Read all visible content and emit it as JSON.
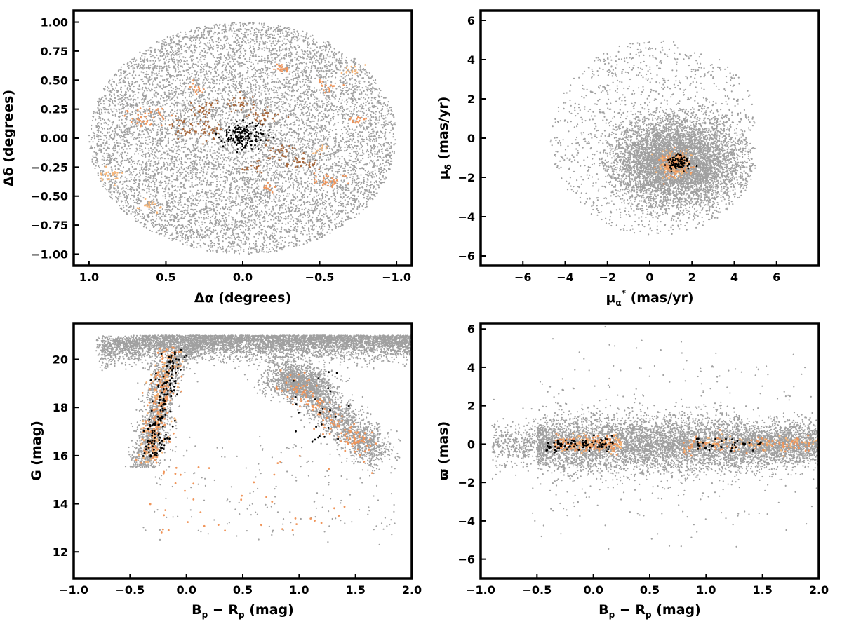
{
  "colors": {
    "field": "#a0a0a0",
    "members_light": "#f7b77a",
    "members_mid": "#f0955a",
    "members_dark": "#a8683c",
    "core": "#000000",
    "frame": "#000000"
  },
  "chart_data": [
    {
      "id": "sky",
      "type": "scatter",
      "xlabel": {
        "main": "Δα (degrees)"
      },
      "ylabel": {
        "main": "Δδ (degrees)"
      },
      "xlim": [
        1.1,
        -1.1
      ],
      "ylim": [
        -1.1,
        1.1
      ],
      "x_inverted": true,
      "xticks": [
        1.0,
        0.5,
        0.0,
        -0.5,
        -1.0
      ],
      "xtick_labels": [
        "1.0",
        "0.5",
        "0.0",
        "−0.5",
        "−1.0"
      ],
      "yticks": [
        1.0,
        0.75,
        0.5,
        0.25,
        0.0,
        -0.25,
        -0.5,
        -0.75,
        -1.0
      ],
      "ytick_labels": [
        "1.00",
        "0.75",
        "0.50",
        "0.25",
        "0.00",
        "−0.25",
        "−0.50",
        "−0.75",
        "−1.00"
      ],
      "series": [
        {
          "role": "field",
          "approx_count": 9000,
          "distribution": "uniform disc radius 1.0 deg centred at (0,0)"
        },
        {
          "role": "members",
          "clumps": [
            {
              "x": 0.62,
              "y": 0.18,
              "r": 0.06,
              "n": 40,
              "color": "members_mid"
            },
            {
              "x": 0.85,
              "y": -0.32,
              "r": 0.04,
              "n": 25,
              "color": "members_light"
            },
            {
              "x": 0.6,
              "y": -0.58,
              "r": 0.04,
              "n": 20,
              "color": "members_light"
            },
            {
              "x": 0.3,
              "y": 0.42,
              "r": 0.03,
              "n": 15,
              "color": "members_mid"
            },
            {
              "x": 0.38,
              "y": 0.08,
              "r": 0.07,
              "n": 40,
              "color": "members_dark"
            },
            {
              "x": 0.25,
              "y": 0.25,
              "r": 0.05,
              "n": 30,
              "color": "members_dark"
            },
            {
              "x": 0.22,
              "y": 0.07,
              "r": 0.04,
              "n": 25,
              "color": "members_dark"
            },
            {
              "x": -0.02,
              "y": 0.3,
              "r": 0.05,
              "n": 30,
              "color": "members_dark"
            },
            {
              "x": -0.14,
              "y": 0.18,
              "r": 0.05,
              "n": 30,
              "color": "members_dark"
            },
            {
              "x": -0.25,
              "y": -0.12,
              "r": 0.05,
              "n": 30,
              "color": "members_dark"
            },
            {
              "x": -0.38,
              "y": -0.22,
              "r": 0.05,
              "n": 30,
              "color": "members_dark"
            },
            {
              "x": -0.05,
              "y": -0.25,
              "r": 0.03,
              "n": 15,
              "color": "members_dark"
            },
            {
              "x": -0.17,
              "y": -0.42,
              "r": 0.03,
              "n": 12,
              "color": "members_mid"
            },
            {
              "x": -0.25,
              "y": 0.6,
              "r": 0.03,
              "n": 20,
              "color": "members_mid"
            },
            {
              "x": -0.56,
              "y": 0.45,
              "r": 0.03,
              "n": 15,
              "color": "members_mid"
            },
            {
              "x": -0.7,
              "y": 0.58,
              "r": 0.03,
              "n": 15,
              "color": "members_light"
            },
            {
              "x": -0.55,
              "y": -0.37,
              "r": 0.05,
              "n": 35,
              "color": "members_mid"
            },
            {
              "x": -0.73,
              "y": 0.15,
              "r": 0.03,
              "n": 15,
              "color": "members_mid"
            },
            {
              "x": -0.5,
              "y": -0.1,
              "r": 0.03,
              "n": 10,
              "color": "members_light"
            }
          ]
        },
        {
          "role": "core",
          "x": 0.0,
          "y": 0.02,
          "sx": 0.07,
          "sy": 0.06,
          "n": 150
        }
      ]
    },
    {
      "id": "proper_motion",
      "type": "scatter",
      "xlabel": {
        "main": "μ",
        "sub": "α",
        "sup": "*",
        "rest": " (mas/yr)"
      },
      "ylabel": {
        "main": "μ",
        "sub": "δ",
        "rest": " (mas/yr)"
      },
      "xlim": [
        -8,
        8
      ],
      "ylim": [
        -6.5,
        6.5
      ],
      "xticks": [
        -6,
        -4,
        -2,
        0,
        2,
        4,
        6
      ],
      "xtick_labels": [
        "−6",
        "−4",
        "−2",
        "0",
        "2",
        "4",
        "6"
      ],
      "yticks": [
        6,
        4,
        2,
        0,
        -2,
        -4,
        -6
      ],
      "ytick_labels": [
        "6",
        "4",
        "2",
        "0",
        "−2",
        "−4",
        "−6"
      ],
      "series": [
        {
          "role": "field_dense",
          "cx": 1.3,
          "cy": -1.2,
          "sx": 1.6,
          "sy": 1.15,
          "clip_r": 3.6,
          "n": 6000
        },
        {
          "role": "field_halo",
          "cx": 0.3,
          "cy": 0.0,
          "r": 5.0,
          "n": 1400
        },
        {
          "role": "members",
          "cx": 1.2,
          "cy": -1.3,
          "sx": 0.35,
          "sy": 0.3,
          "n": 250
        },
        {
          "role": "core",
          "cx": 1.3,
          "cy": -1.3,
          "sx": 0.3,
          "sy": 0.2,
          "n": 80
        }
      ]
    },
    {
      "id": "cmd",
      "type": "scatter",
      "xlabel": {
        "main": "B",
        "sub": "p",
        "rest": " − R",
        "sub2": "p",
        "rest2": " (mag)"
      },
      "ylabel": {
        "main": "G (mag)"
      },
      "xlim": [
        -1.0,
        2.0
      ],
      "ylim": [
        10.9,
        21.5
      ],
      "y_inverted": false,
      "xticks": [
        -1.0,
        -0.5,
        0.0,
        0.5,
        1.0,
        1.5,
        2.0
      ],
      "xtick_labels": [
        "−1.0",
        "−0.5",
        "0.0",
        "0.5",
        "1.0",
        "1.5",
        "2.0"
      ],
      "yticks": [
        20,
        18,
        16,
        14,
        12
      ],
      "ytick_labels": [
        "20",
        "18",
        "16",
        "14",
        "12"
      ],
      "series": [
        {
          "role": "field_band",
          "description": "dense faint band at G 20–21 across all colours"
        },
        {
          "role": "field_upper_ms",
          "description": "blue plume at colour −0.3..0.0, G 16–20.5"
        },
        {
          "role": "field_red_clump",
          "description": "red branch from (0.9,19) to (1.7,16)"
        },
        {
          "role": "members",
          "description": "orange points along blue plume and red branch"
        },
        {
          "role": "core",
          "description": "black points concentrated in blue plume"
        }
      ]
    },
    {
      "id": "parallax",
      "type": "scatter",
      "xlabel": {
        "main": "B",
        "sub": "p",
        "rest": " − R",
        "sub2": "p",
        "rest2": " (mag)"
      },
      "ylabel": {
        "main": "ϖ (mas)"
      },
      "xlim": [
        -1.0,
        2.0
      ],
      "ylim": [
        -7.0,
        6.3
      ],
      "xticks": [
        -1.0,
        -0.5,
        0.0,
        0.5,
        1.0,
        1.5,
        2.0
      ],
      "xtick_labels": [
        "−1.0",
        "−0.5",
        "0.0",
        "0.5",
        "1.0",
        "1.5",
        "2.0"
      ],
      "yticks": [
        6,
        4,
        2,
        0,
        -2,
        -4,
        -6
      ],
      "ytick_labels": [
        "6",
        "4",
        "2",
        "0",
        "−2",
        "−4",
        "−6"
      ],
      "series": [
        {
          "role": "field",
          "description": "band centred on 0 mas, widest near colour 0.0–1.0"
        },
        {
          "role": "members",
          "description": "orange points near 0 mas across colour −0.4..2.0"
        },
        {
          "role": "core",
          "description": "black points near 0 mas, colour −0.4..0.2 and 0.9–1.4"
        }
      ]
    }
  ]
}
